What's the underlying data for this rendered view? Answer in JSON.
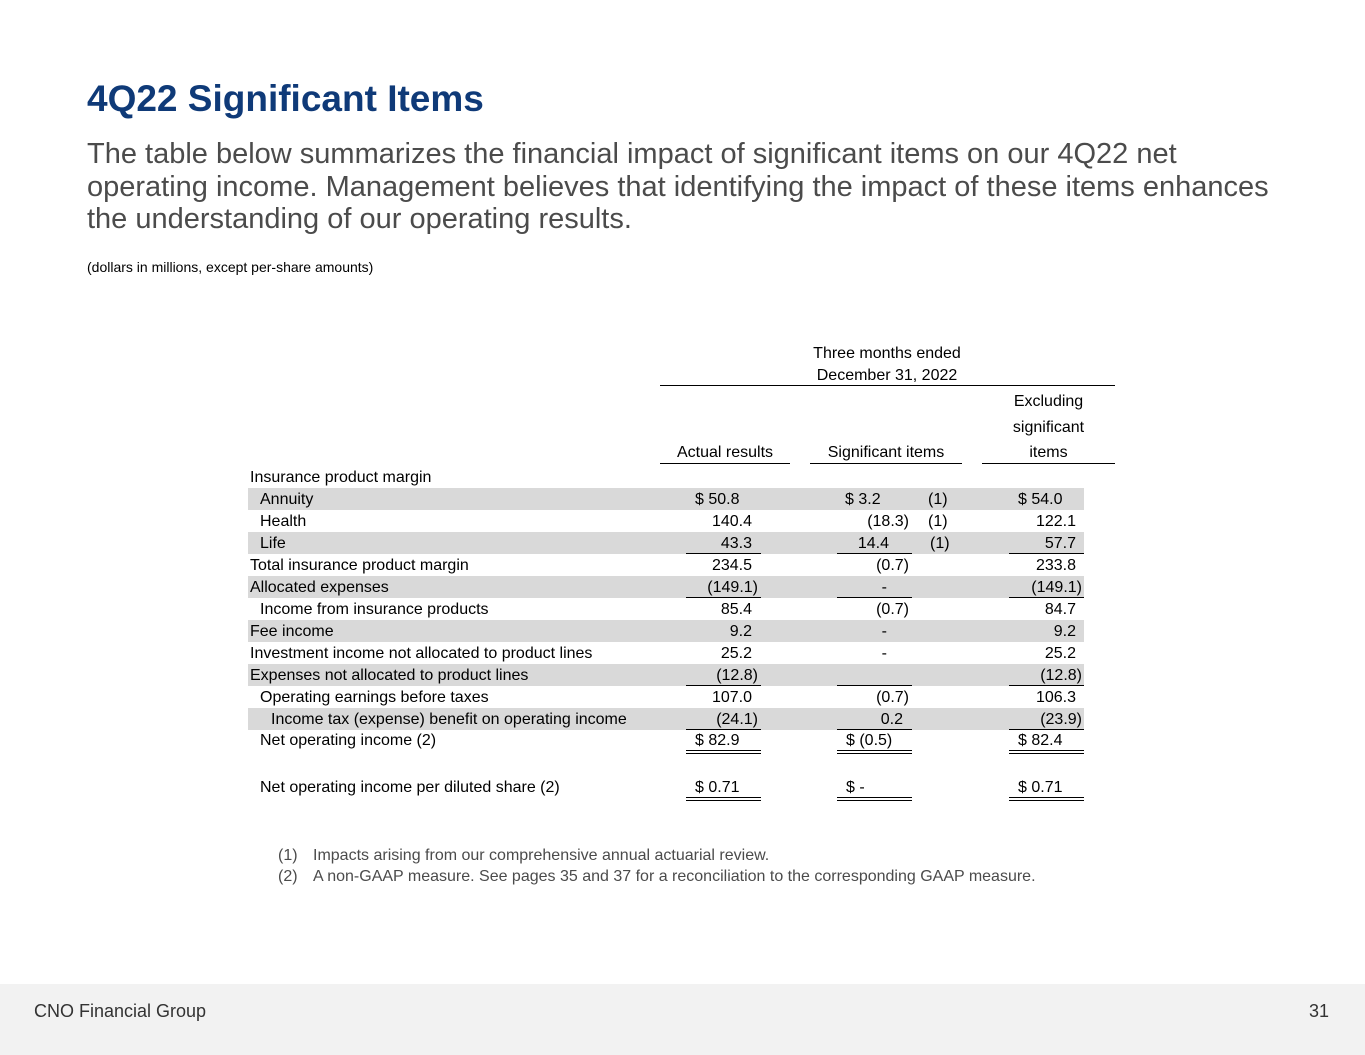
{
  "slide": {
    "title": "4Q22 Significant Items",
    "subtitle": "The table below summarizes the financial impact of significant items on our 4Q22 net operating income. Management believes that identifying the impact of these items enhances the understanding of our operating results.",
    "units_note": "(dollars in millions, except per-share amounts)"
  },
  "table": {
    "period_header_line1": "Three months ended",
    "period_header_line2": "December 31, 2022",
    "col_actual": "Actual results",
    "col_significant": "Significant items",
    "col_excluding_l1": "Excluding",
    "col_excluding_l2": "significant",
    "col_excluding_l3": "items",
    "section_label": "Insurance product margin",
    "rows": [
      {
        "label": "Annuity",
        "actual": "$   50.8",
        "sig": "$     3.2",
        "sig_note": "(1)",
        "excl": "$   54.0"
      },
      {
        "label": "Health",
        "actual": "140.4",
        "sig": "(18.3)",
        "sig_note": "(1)",
        "excl": "122.1"
      },
      {
        "label": "Life",
        "actual": "43.3",
        "sig": "14.4",
        "sig_note": "(1)",
        "excl": "57.7"
      },
      {
        "label": "Total insurance product margin",
        "actual": "234.5",
        "sig": "(0.7)",
        "sig_note": "",
        "excl": "233.8"
      },
      {
        "label": "Allocated expenses",
        "actual": "(149.1)",
        "sig": "-",
        "sig_note": "",
        "excl": "(149.1)"
      },
      {
        "label": "Income from insurance products",
        "actual": "85.4",
        "sig": "(0.7)",
        "sig_note": "",
        "excl": "84.7"
      },
      {
        "label": "Fee income",
        "actual": "9.2",
        "sig": "-",
        "sig_note": "",
        "excl": "9.2"
      },
      {
        "label": "Investment income not allocated to product lines",
        "actual": "25.2",
        "sig": "-",
        "sig_note": "",
        "excl": "25.2"
      },
      {
        "label": "Expenses not allocated to product lines",
        "actual": "(12.8)",
        "sig": "",
        "sig_note": "",
        "excl": "(12.8)"
      },
      {
        "label": "Operating earnings before taxes",
        "actual": "107.0",
        "sig": "(0.7)",
        "sig_note": "",
        "excl": "106.3"
      },
      {
        "label": "Income tax (expense) benefit on operating income",
        "actual": "(24.1)",
        "sig": "0.2",
        "sig_note": "",
        "excl": "(23.9)"
      },
      {
        "label": "Net operating income (2)",
        "actual": "$   82.9",
        "sig": "$   (0.5)",
        "sig_note": "",
        "excl": "$   82.4"
      },
      {
        "label": "Net operating income per diluted share (2)",
        "actual": "$   0.71",
        "sig": "$     -",
        "sig_note": "",
        "excl": "$   0.71"
      }
    ]
  },
  "footnotes": [
    {
      "num": "(1)",
      "text": "Impacts arising from our comprehensive annual actuarial review."
    },
    {
      "num": "(2)",
      "text": "A non-GAAP measure. See pages 35 and 37 for a reconciliation to the corresponding GAAP measure."
    }
  ],
  "footer": {
    "company": "CNO Financial Group",
    "page_number": "31"
  }
}
